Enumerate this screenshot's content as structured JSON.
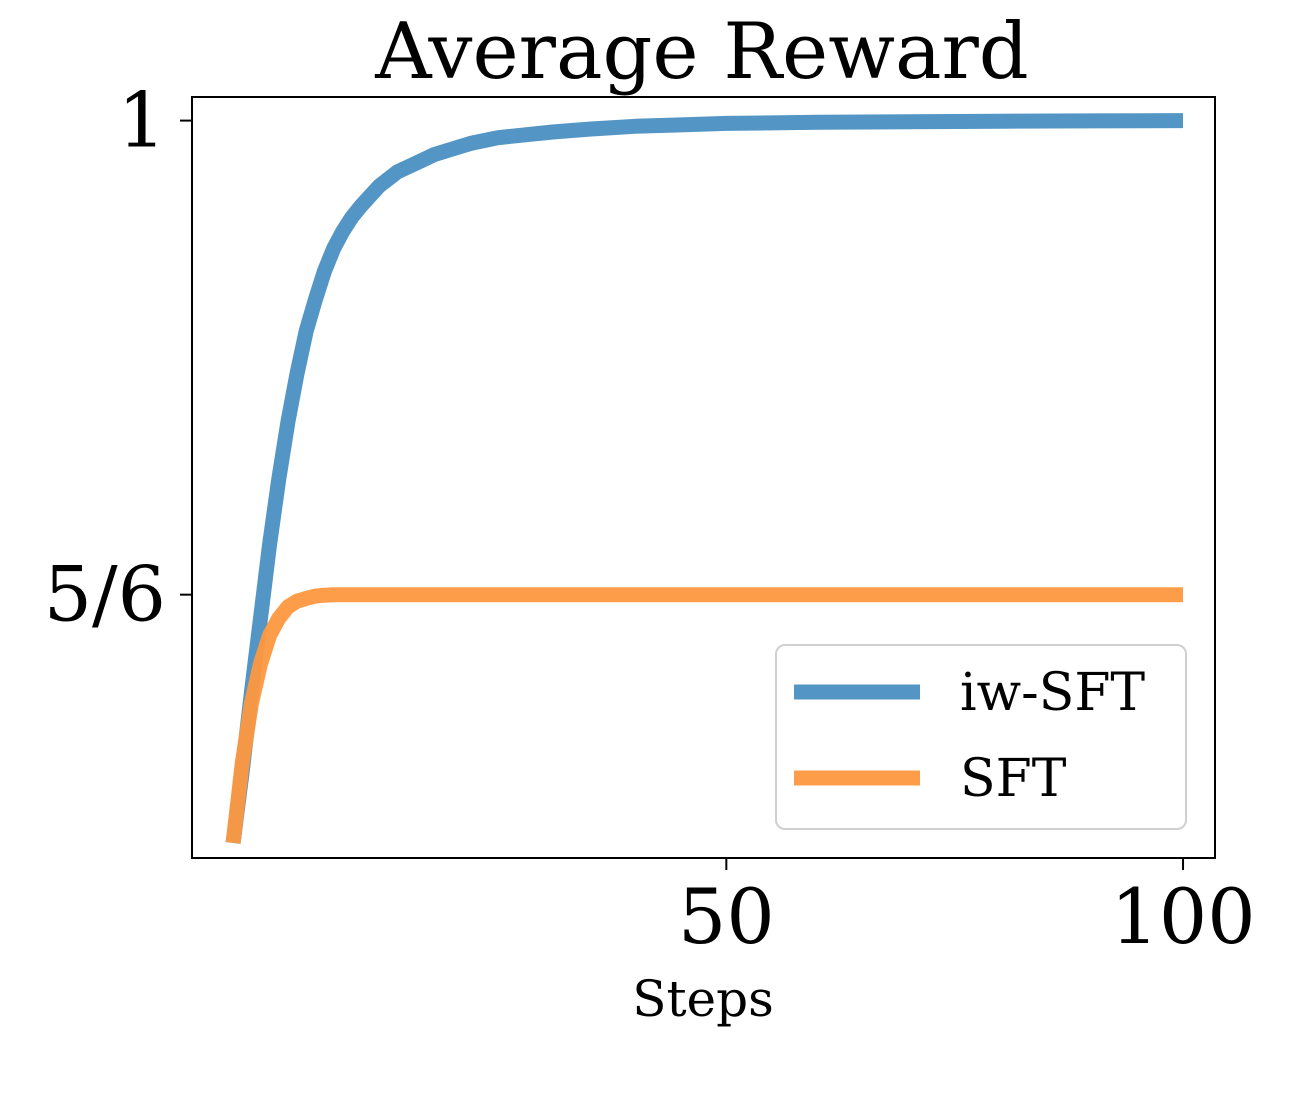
{
  "chart_data": {
    "type": "line",
    "title": "Average Reward",
    "xlabel": "Steps",
    "ylabel": "",
    "xlim": [
      -8.5,
      103.5
    ],
    "ylim": [
      0.7407,
      1.0083
    ],
    "xticks": [
      {
        "value": 50,
        "label": "50"
      },
      {
        "value": 100,
        "label": "100"
      }
    ],
    "yticks": [
      {
        "value": 0.8333,
        "label": "5/6"
      },
      {
        "value": 1.0,
        "label": "1"
      }
    ],
    "grid": false,
    "legend_position": "lower-right",
    "series": [
      {
        "name": "iw-SFT",
        "color": "#4a8fc1",
        "x": [
          -4,
          -3,
          -2,
          -1,
          0,
          1,
          2,
          3,
          4,
          5,
          6,
          7,
          8,
          9,
          10,
          12,
          14,
          16,
          18,
          20,
          22,
          25,
          28,
          31,
          35,
          40,
          45,
          50,
          55,
          60,
          70,
          80,
          90,
          100
        ],
        "y": [
          0.746,
          0.771,
          0.799,
          0.825,
          0.851,
          0.874,
          0.894,
          0.911,
          0.926,
          0.937,
          0.947,
          0.955,
          0.961,
          0.966,
          0.97,
          0.977,
          0.982,
          0.985,
          0.988,
          0.99,
          0.992,
          0.994,
          0.995,
          0.996,
          0.997,
          0.998,
          0.9985,
          0.999,
          0.9992,
          0.9994,
          0.9996,
          0.9998,
          0.9999,
          1.0
        ]
      },
      {
        "name": "SFT",
        "color": "#fd9840",
        "x": [
          -4,
          -3,
          -2,
          -1,
          0,
          1,
          2,
          3,
          4,
          5,
          6,
          7,
          8,
          10,
          15,
          20,
          40,
          60,
          80,
          100
        ],
        "y": [
          0.746,
          0.774,
          0.795,
          0.809,
          0.819,
          0.825,
          0.829,
          0.831,
          0.832,
          0.8328,
          0.8331,
          0.8333,
          0.8333,
          0.8333,
          0.8333,
          0.8333,
          0.8333,
          0.8333,
          0.8333,
          0.8333
        ]
      }
    ]
  }
}
